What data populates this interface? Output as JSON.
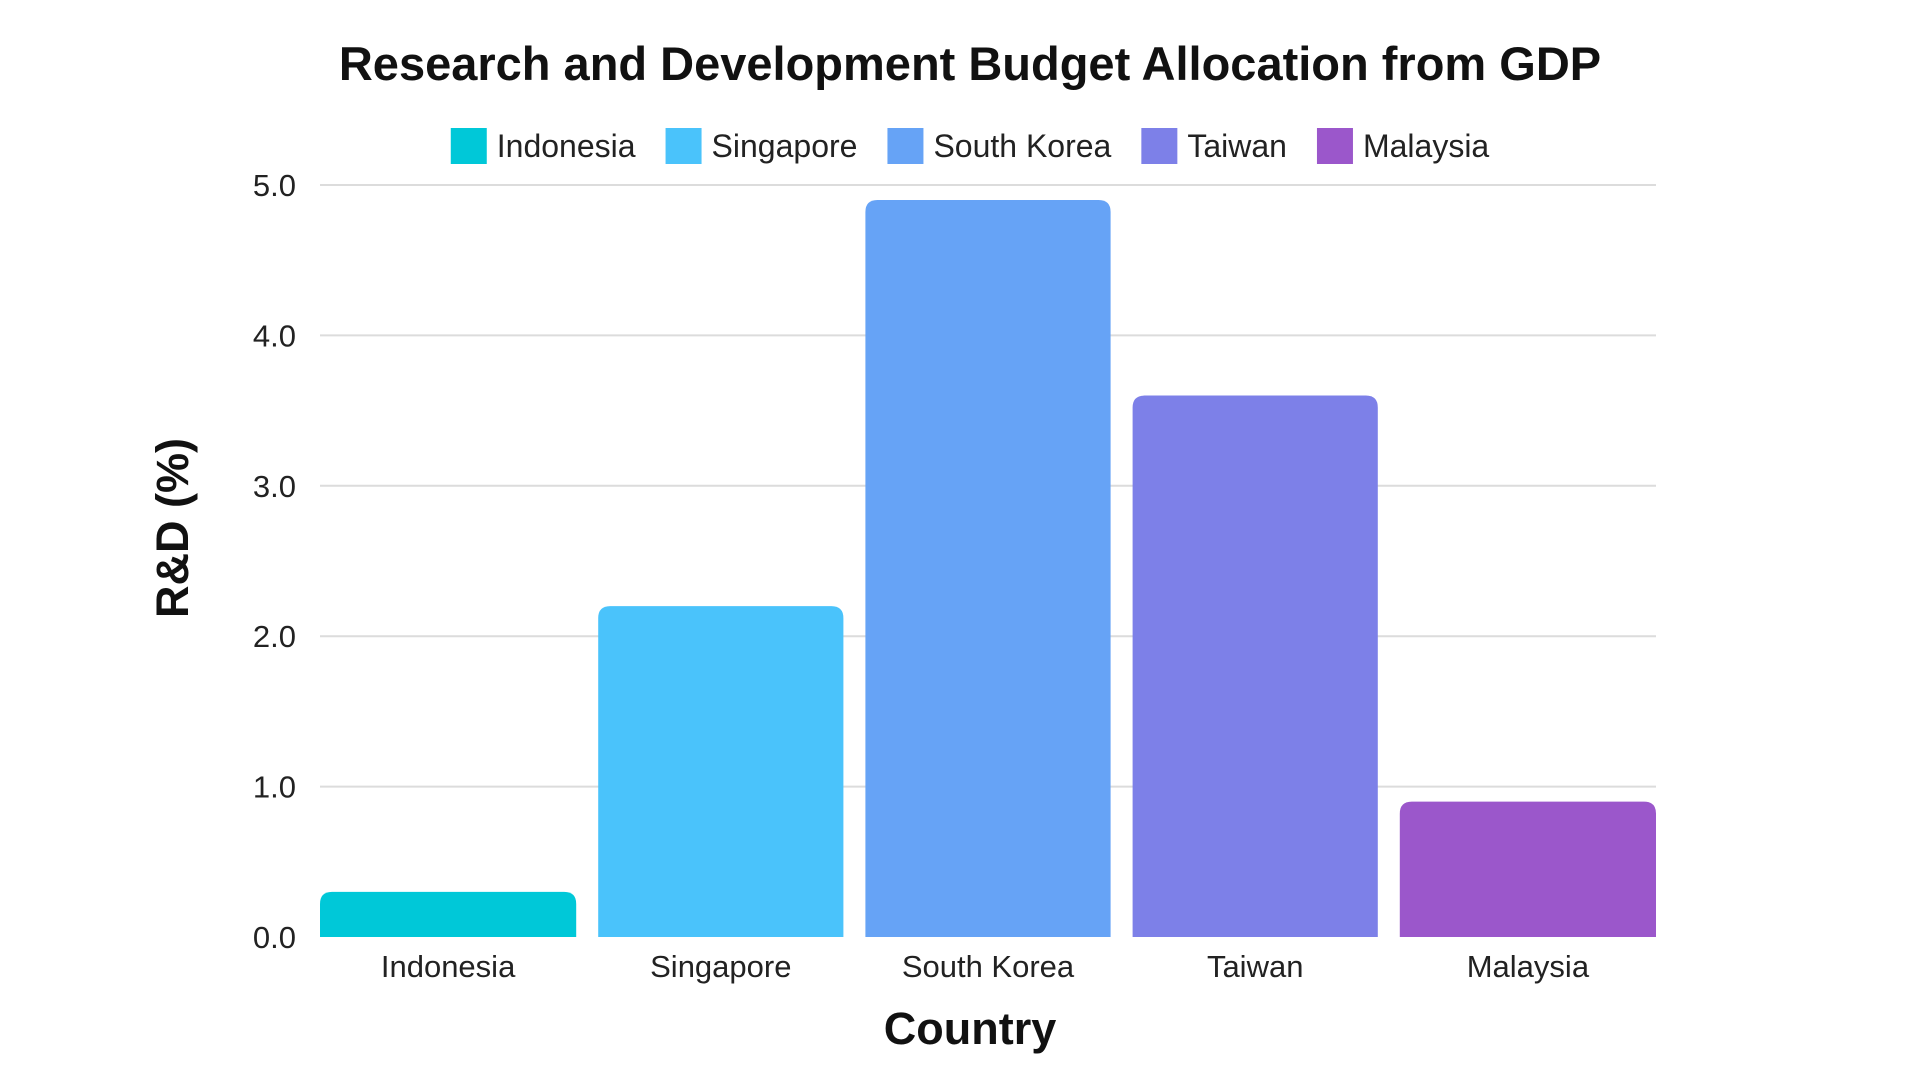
{
  "chart_data": {
    "type": "bar",
    "title": "Research and Development Budget Allocation from GDP",
    "xlabel": "Country",
    "ylabel": "R&D (%)",
    "ylim": [
      0,
      5
    ],
    "yticks": [
      "0.0",
      "1.0",
      "2.0",
      "3.0",
      "4.0",
      "5.0"
    ],
    "grid": true,
    "legend_position": "top-center",
    "categories": [
      "Indonesia",
      "Singapore",
      "South Korea",
      "Taiwan",
      "Malaysia"
    ],
    "values": [
      0.3,
      2.2,
      4.9,
      3.6,
      0.9
    ],
    "colors": [
      "#00c8d8",
      "#4ac3fb",
      "#66a3f6",
      "#7d80e8",
      "#9b57cb"
    ],
    "legend": [
      "Indonesia",
      "Singapore",
      "South Korea",
      "Taiwan",
      "Malaysia"
    ]
  }
}
